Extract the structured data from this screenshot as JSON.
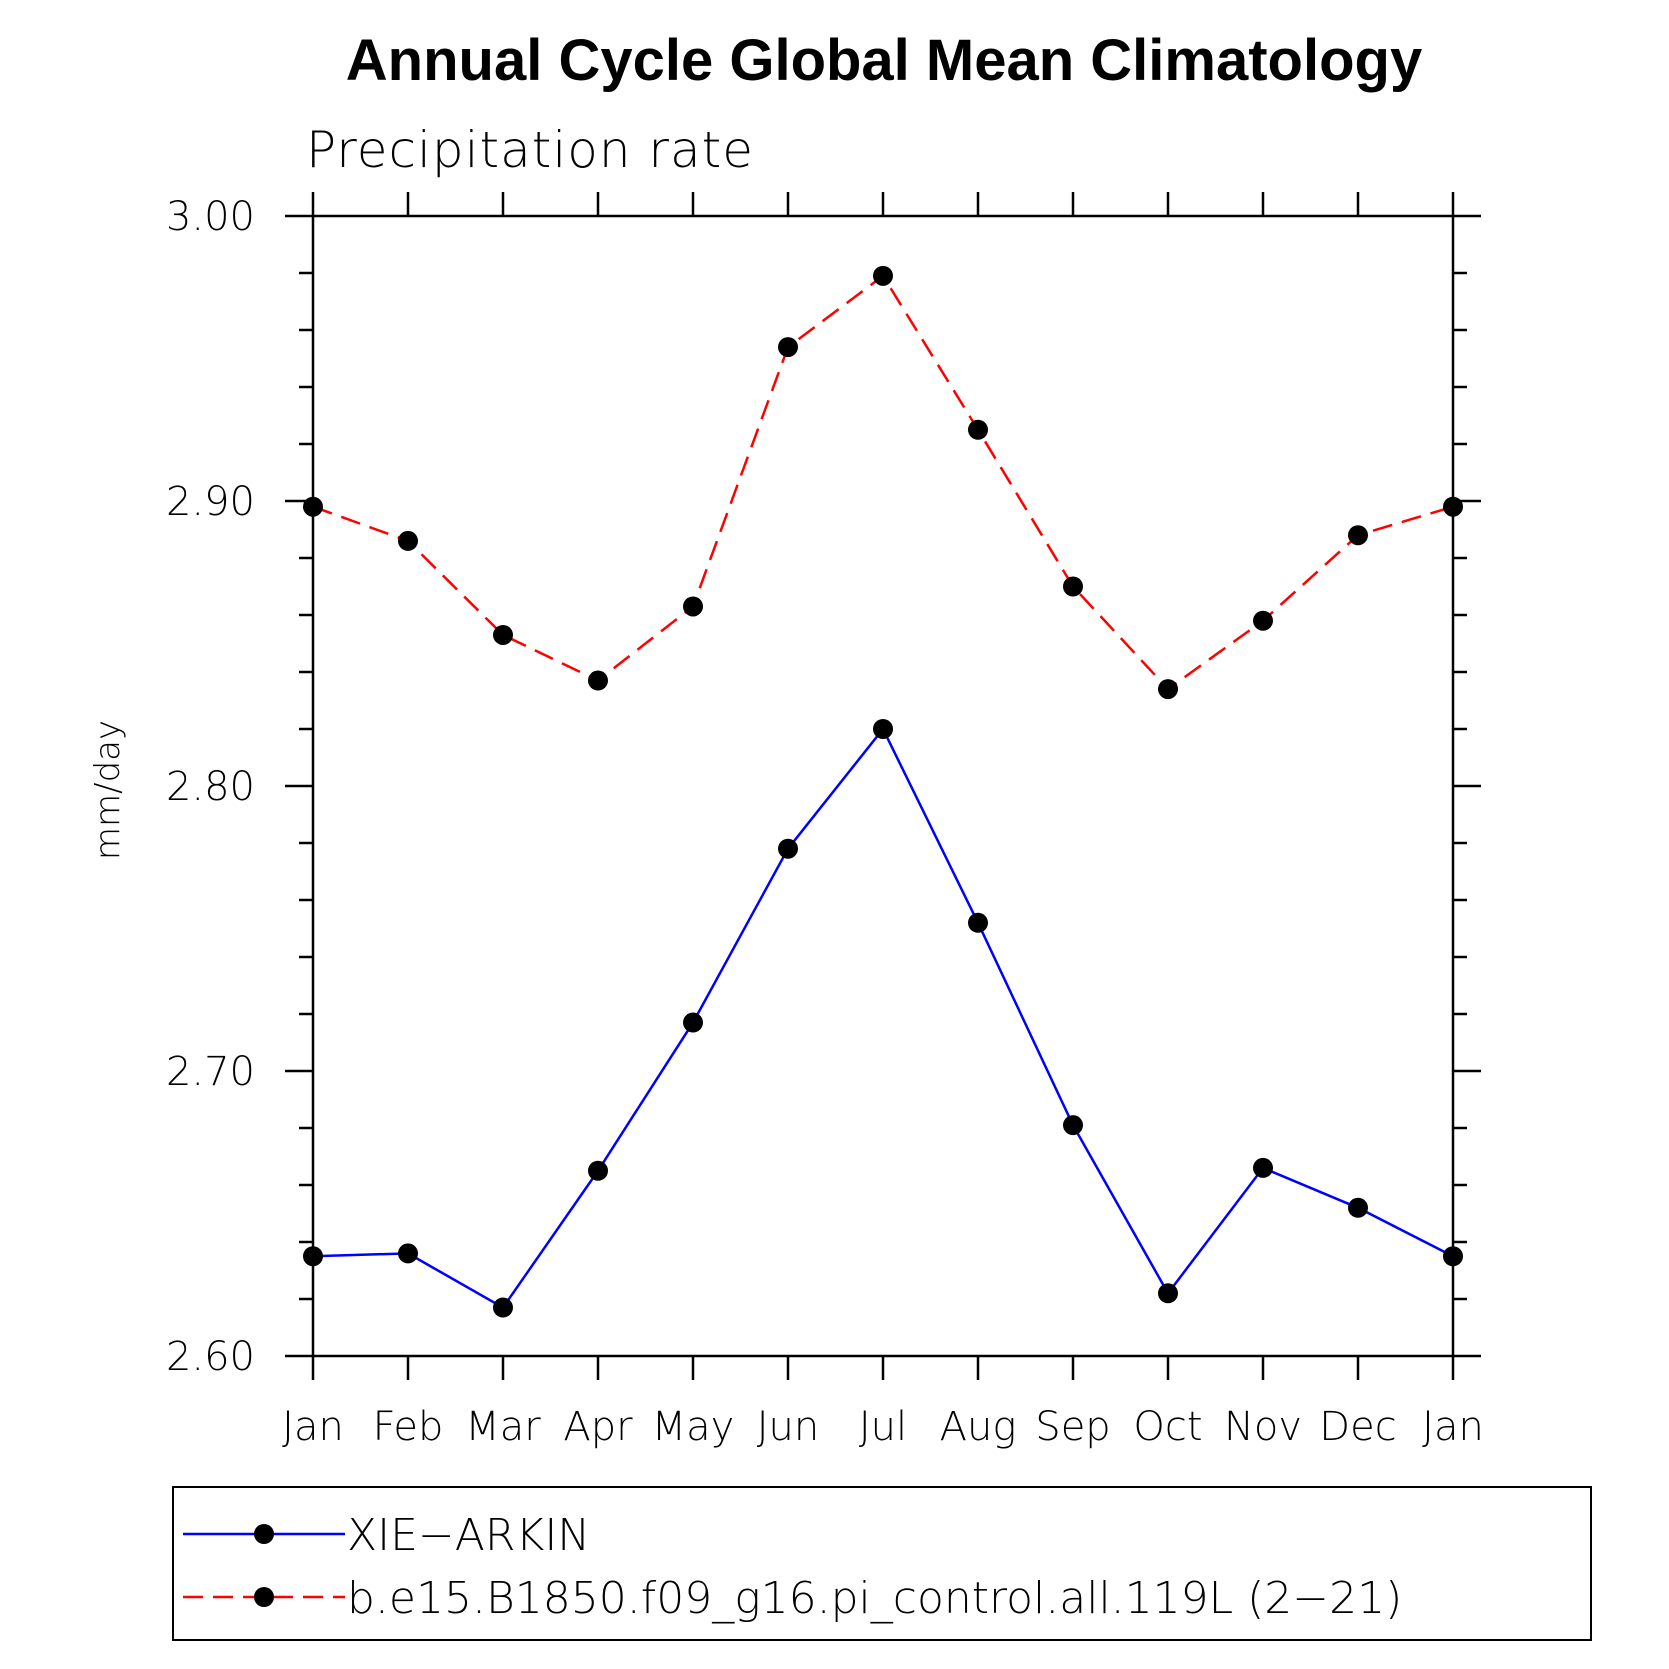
{
  "chart_data": {
    "type": "line",
    "title": "Annual Cycle Global Mean Climatology",
    "subtitle": "Precipitation rate",
    "xlabel": "",
    "ylabel": "mm/day",
    "categories": [
      "Jan",
      "Feb",
      "Mar",
      "Apr",
      "May",
      "Jun",
      "Jul",
      "Aug",
      "Sep",
      "Oct",
      "Nov",
      "Dec",
      "Jan"
    ],
    "ylim": [
      2.6,
      3.0
    ],
    "yticks": [
      "2.60",
      "2.70",
      "2.80",
      "2.90",
      "3.00"
    ],
    "grid": false,
    "legend_position": "bottom",
    "series": [
      {
        "name": "XIE−ARKIN",
        "color": "#0000ff",
        "dash": "solid",
        "marker": "filled-circle",
        "values": [
          2.635,
          2.636,
          2.617,
          2.665,
          2.717,
          2.778,
          2.82,
          2.752,
          2.681,
          2.622,
          2.666,
          2.652,
          2.635
        ]
      },
      {
        "name": "b.e15.B1850.f09_g16.pi_control.all.119L (2−21)",
        "color": "#ff0000",
        "dash": "dashed",
        "marker": "filled-circle",
        "values": [
          2.898,
          2.886,
          2.853,
          2.837,
          2.863,
          2.954,
          2.979,
          2.925,
          2.87,
          2.834,
          2.858,
          2.888,
          2.898
        ]
      }
    ]
  }
}
